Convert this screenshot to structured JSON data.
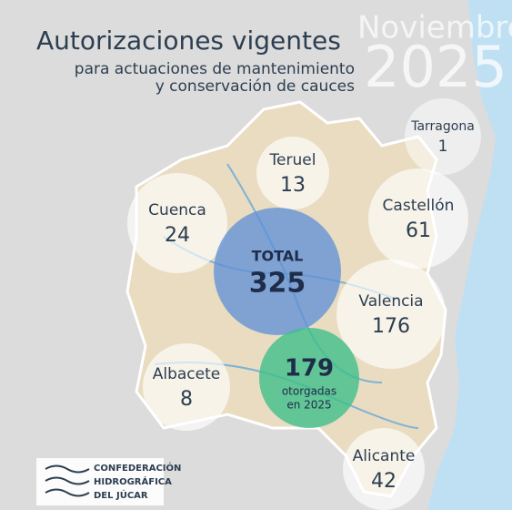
{
  "header": {
    "title": "Autorizaciones vigentes",
    "subtitle_lines": [
      "para actuaciones de mantenimiento",
      "y conservación de cauces"
    ],
    "month": "Noviembre",
    "year": "2025"
  },
  "provinces": [
    {
      "name": "Tarragona",
      "count": 1
    },
    {
      "name": "Teruel",
      "count": 13
    },
    {
      "name": "Castellón",
      "count": 61
    },
    {
      "name": "Cuenca",
      "count": 24
    },
    {
      "name": "Valencia",
      "count": 176
    },
    {
      "name": "Albacete",
      "count": 8
    },
    {
      "name": "Alicante",
      "count": 42
    }
  ],
  "total": {
    "label": "TOTAL",
    "value": 325
  },
  "granted": {
    "value": 179,
    "label_lines": [
      "otorgadas",
      "en 2025"
    ]
  },
  "logo": {
    "lines": [
      "CONFEDERACIÓN",
      "HIDROGRÁFICA",
      "DEL JÚCAR"
    ]
  }
}
